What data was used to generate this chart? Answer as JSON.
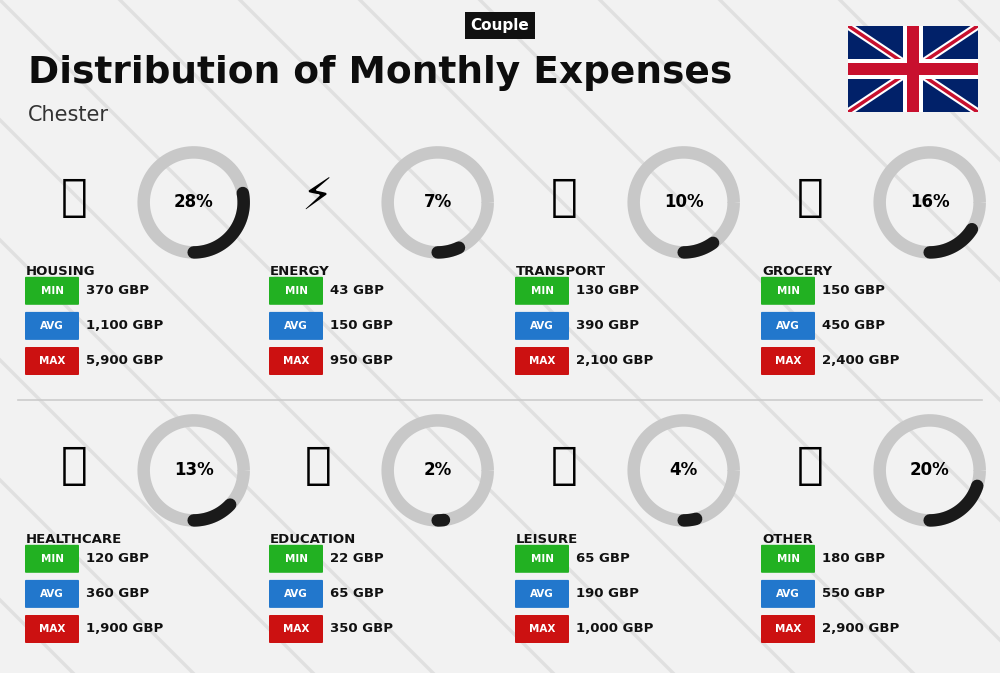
{
  "title": "Distribution of Monthly Expenses",
  "subtitle": "Chester",
  "tag": "Couple",
  "bg_color": "#f2f2f2",
  "categories": [
    {
      "name": "HOUSING",
      "pct": 28,
      "min": "370 GBP",
      "avg": "1,100 GBP",
      "max": "5,900 GBP",
      "col": 0,
      "row": 0
    },
    {
      "name": "ENERGY",
      "pct": 7,
      "min": "43 GBP",
      "avg": "150 GBP",
      "max": "950 GBP",
      "col": 1,
      "row": 0
    },
    {
      "name": "TRANSPORT",
      "pct": 10,
      "min": "130 GBP",
      "avg": "390 GBP",
      "max": "2,100 GBP",
      "col": 2,
      "row": 0
    },
    {
      "name": "GROCERY",
      "pct": 16,
      "min": "150 GBP",
      "avg": "450 GBP",
      "max": "2,400 GBP",
      "col": 3,
      "row": 0
    },
    {
      "name": "HEALTHCARE",
      "pct": 13,
      "min": "120 GBP",
      "avg": "360 GBP",
      "max": "1,900 GBP",
      "col": 0,
      "row": 1
    },
    {
      "name": "EDUCATION",
      "pct": 2,
      "min": "22 GBP",
      "avg": "65 GBP",
      "max": "350 GBP",
      "col": 1,
      "row": 1
    },
    {
      "name": "LEISURE",
      "pct": 4,
      "min": "65 GBP",
      "avg": "190 GBP",
      "max": "1,000 GBP",
      "col": 2,
      "row": 1
    },
    {
      "name": "OTHER",
      "pct": 20,
      "min": "180 GBP",
      "avg": "550 GBP",
      "max": "2,900 GBP",
      "col": 3,
      "row": 1
    }
  ],
  "min_color": "#22b122",
  "avg_color": "#2277cc",
  "max_color": "#cc1111",
  "ring_filled": "#1a1a1a",
  "ring_empty": "#c8c8c8",
  "icon_emojis": {
    "HOUSING": "🏗️",
    "ENERGY": "⚡️",
    "TRANSPORT": "🚌",
    "GROCERY": "🛒",
    "HEALTHCARE": "💗",
    "EDUCATION": "🎓",
    "LEISURE": "🛍️",
    "OTHER": "👜"
  }
}
